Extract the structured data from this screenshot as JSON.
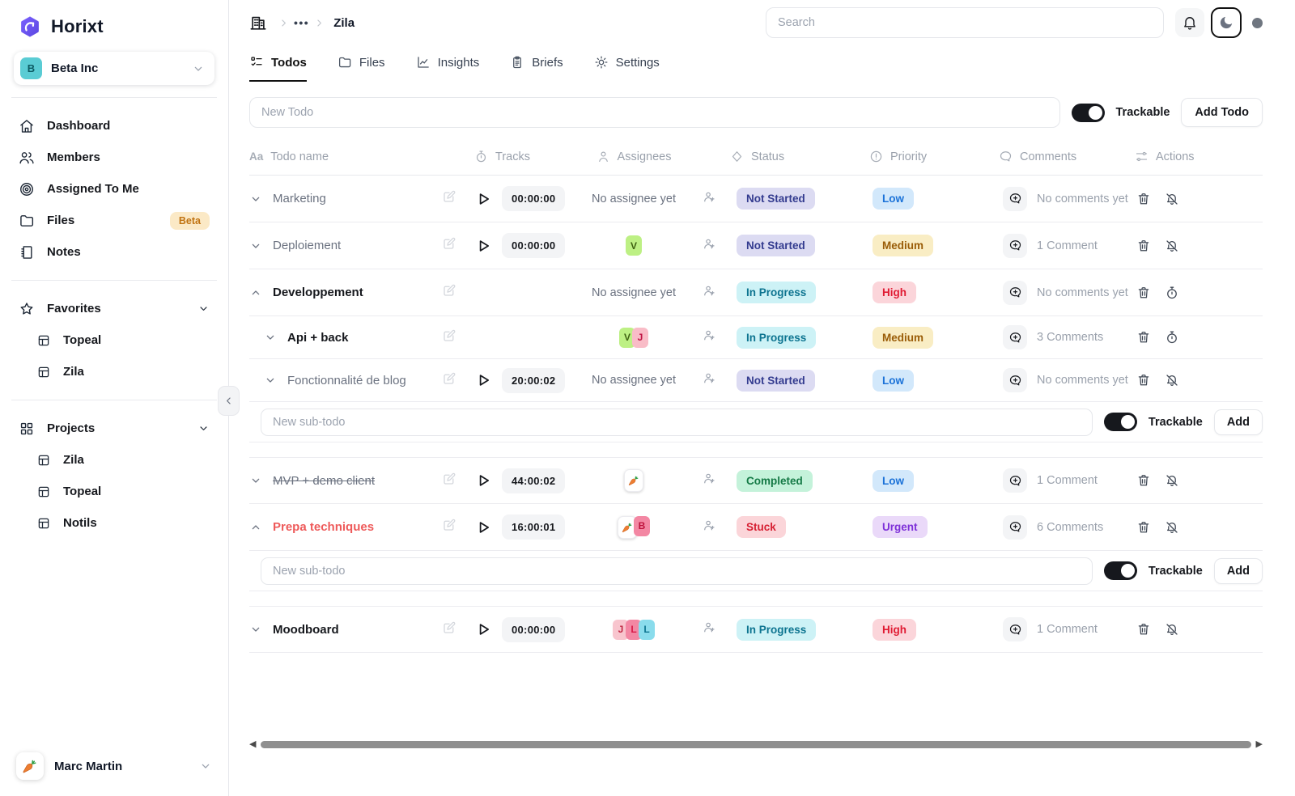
{
  "app": {
    "name": "Horixt",
    "logo_icon": "horixt-logo-icon"
  },
  "sidebar": {
    "workspace": {
      "initial": "B",
      "name": "Beta Inc"
    },
    "nav": [
      {
        "label": "Dashboard",
        "icon": "home-icon"
      },
      {
        "label": "Members",
        "icon": "users-icon"
      },
      {
        "label": "Assigned To Me",
        "icon": "target-icon"
      },
      {
        "label": "Files",
        "icon": "folder-icon",
        "badge": "Beta"
      },
      {
        "label": "Notes",
        "icon": "notebook-icon"
      }
    ],
    "sections": [
      {
        "label": "Favorites",
        "icon": "star-icon",
        "items": [
          "Topeal",
          "Zila"
        ]
      },
      {
        "label": "Projects",
        "icon": "grid-icon",
        "items": [
          "Zila",
          "Topeal",
          "Notils"
        ]
      }
    ],
    "user": {
      "name": "Marc Martin",
      "avatar": "carrot-icon"
    }
  },
  "topbar": {
    "breadcrumb": {
      "root_icon": "building-icon",
      "ellipsis": "•••",
      "current": "Zila"
    },
    "search_placeholder": "Search",
    "icons": [
      "bell-icon",
      "moon-icon",
      "presence-dot"
    ]
  },
  "tabs": [
    {
      "label": "Todos",
      "icon": "todos-icon",
      "active": true
    },
    {
      "label": "Files",
      "icon": "folder-icon",
      "active": false
    },
    {
      "label": "Insights",
      "icon": "insights-icon",
      "active": false
    },
    {
      "label": "Briefs",
      "icon": "briefs-icon",
      "active": false
    },
    {
      "label": "Settings",
      "icon": "gear-icon",
      "active": false
    }
  ],
  "new_todo": {
    "placeholder": "New Todo",
    "trackable_label": "Trackable",
    "add_label": "Add Todo",
    "toggle_on": true
  },
  "sub_todo": {
    "placeholder": "New sub-todo",
    "trackable_label": "Trackable",
    "add_label": "Add",
    "toggle_on": true
  },
  "table_headers": [
    {
      "label": "Todo name",
      "icon": "aa-text"
    },
    {
      "label": "Tracks",
      "icon": "stopwatch-icon"
    },
    {
      "label": "Assignees",
      "icon": "person-icon"
    },
    {
      "label": "Status",
      "icon": "diamond-icon"
    },
    {
      "label": "Priority",
      "icon": "info-icon"
    },
    {
      "label": "Comments",
      "icon": "comment-icon"
    },
    {
      "label": "Actions",
      "icon": "sliders-icon"
    }
  ],
  "status_styles": {
    "Not Started": {
      "bg": "#dcdbf2",
      "fg": "#333b8f"
    },
    "In Progress": {
      "bg": "#cdf2f6",
      "fg": "#0d7490"
    },
    "Completed": {
      "bg": "#c4f2da",
      "fg": "#157a46"
    },
    "Stuck": {
      "bg": "#fbd5d9",
      "fg": "#d61f32"
    }
  },
  "priority_styles": {
    "Low": {
      "bg": "#d2e8fb",
      "fg": "#1b72d8"
    },
    "Medium": {
      "bg": "#f9edc4",
      "fg": "#9a5d08"
    },
    "High": {
      "bg": "#fbd5da",
      "fg": "#e01b33"
    },
    "Urgent": {
      "bg": "#ead9f9",
      "fg": "#7e30d8"
    }
  },
  "rows": [
    {
      "type": "todo",
      "name": "Marketing",
      "level": 0,
      "expanded": false,
      "name_style": "t-muted",
      "track": "00:00:00",
      "assignees": [],
      "no_assignee": "No assignee yet",
      "status": "Not Started",
      "priority": "Low",
      "comments": "No comments yet",
      "mute_action": "bell-slash-icon"
    },
    {
      "type": "todo",
      "name": "Deploiement",
      "level": 0,
      "expanded": false,
      "name_style": "t-muted",
      "track": "00:00:00",
      "assignees": [
        {
          "text": "V",
          "bg": "#bdf084",
          "fg": "#3f6212"
        }
      ],
      "status": "Not Started",
      "priority": "Medium",
      "comments": "1 Comment",
      "mute_action": "bell-slash-icon"
    },
    {
      "type": "todo",
      "name": "Developpement",
      "level": 0,
      "expanded": true,
      "name_style": "t-dark",
      "track": null,
      "assignees": [],
      "no_assignee": "No assignee yet",
      "status": "In Progress",
      "priority": "High",
      "comments": "No comments yet",
      "mute_action": "stopwatch-icon"
    },
    {
      "type": "todo",
      "name": "Api + back",
      "level": 1,
      "expanded": false,
      "name_style": "t-dark",
      "track": null,
      "assignees": [
        {
          "text": "V",
          "bg": "#bdf084",
          "fg": "#3f6212"
        },
        {
          "text": "J",
          "bg": "#f9bcc7",
          "fg": "#be1242"
        }
      ],
      "status": "In Progress",
      "priority": "Medium",
      "comments": "3 Comments",
      "mute_action": "stopwatch-icon"
    },
    {
      "type": "todo",
      "name": "Fonctionnalité de blog",
      "level": 1,
      "expanded": false,
      "name_style": "t-muted",
      "track": "20:00:02",
      "assignees": [],
      "no_assignee": "No assignee yet",
      "status": "Not Started",
      "priority": "Low",
      "comments": "No comments yet",
      "mute_action": "bell-slash-icon"
    },
    {
      "type": "subinput"
    },
    {
      "type": "todo",
      "name": "MVP + demo client",
      "level": 0,
      "gap": true,
      "expanded": false,
      "name_style": "t-muted t-struck",
      "track": "44:00:02",
      "assignees": [
        {
          "carrot": true
        }
      ],
      "status": "Completed",
      "priority": "Low",
      "comments": "1 Comment",
      "mute_action": "bell-slash-icon"
    },
    {
      "type": "todo",
      "name": "Prepa techniques",
      "level": 0,
      "expanded": true,
      "name_style": "t-red",
      "track": "16:00:01",
      "assignees": [
        {
          "carrot": true
        },
        {
          "text": "B",
          "bg": "#f387a3",
          "fg": "#be123c"
        }
      ],
      "status": "Stuck",
      "priority": "Urgent",
      "comments": "6 Comments",
      "mute_action": "bell-slash-icon"
    },
    {
      "type": "subinput"
    },
    {
      "type": "todo",
      "name": "Moodboard",
      "level": 0,
      "gap": true,
      "expanded": false,
      "name_style": "t-dark",
      "track": "00:00:00",
      "assignees": [
        {
          "text": "J",
          "bg": "#f8c5ce",
          "fg": "#c22a46"
        },
        {
          "text": "L",
          "bg": "#f387a3",
          "fg": "#d81b4a"
        },
        {
          "text": "L",
          "bg": "#8adcec",
          "fg": "#0e7490"
        }
      ],
      "status": "In Progress",
      "priority": "High",
      "comments": "1 Comment",
      "mute_action": "bell-slash-icon"
    }
  ],
  "scrollbar": {
    "left_arrow": "◀",
    "right_arrow": "▶"
  }
}
